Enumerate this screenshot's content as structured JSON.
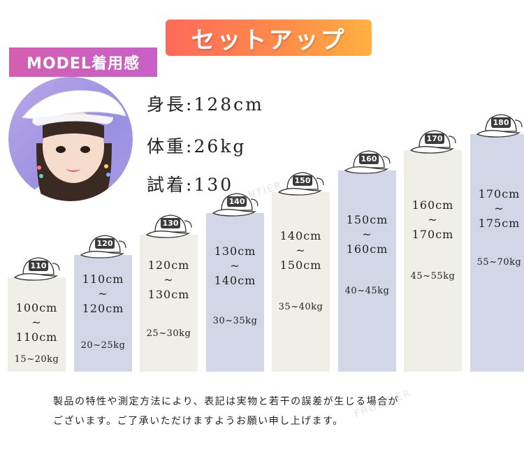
{
  "banner": {
    "title": "セットアップ"
  },
  "model_tag": {
    "label": "MODEL着用感"
  },
  "model": {
    "height_label": "身長",
    "height": "128cm",
    "weight_label": "体重",
    "weight": "26kg",
    "size_label": "試着",
    "size": "130"
  },
  "sizes": [
    {
      "size": "110",
      "range_top": "100cm",
      "tilde": "~",
      "range_bottom": "110cm",
      "weight": "15~20kg"
    },
    {
      "size": "120",
      "range_top": "110cm",
      "tilde": "~",
      "range_bottom": "120cm",
      "weight": "20~25kg"
    },
    {
      "size": "130",
      "range_top": "120cm",
      "tilde": "~",
      "range_bottom": "130cm",
      "weight": "25~30kg"
    },
    {
      "size": "140",
      "range_top": "130cm",
      "tilde": "~",
      "range_bottom": "140cm",
      "weight": "30~35kg"
    },
    {
      "size": "150",
      "range_top": "140cm",
      "tilde": "~",
      "range_bottom": "150cm",
      "weight": "35~40kg"
    },
    {
      "size": "160",
      "range_top": "150cm",
      "tilde": "~",
      "range_bottom": "160cm",
      "weight": "40~45kg"
    },
    {
      "size": "170",
      "range_top": "160cm",
      "tilde": "~",
      "range_bottom": "170cm",
      "weight": "45~55kg"
    },
    {
      "size": "180",
      "range_top": "170cm",
      "tilde": "~",
      "range_bottom": "175cm",
      "weight": "55~70kg"
    }
  ],
  "notice": {
    "line1": "製品の特性や測定方法により、表記は実物と若干の誤差が生じる場合が",
    "line2": "ございます。ご了承いただけますようお願い申し上げます。"
  },
  "watermark": "FRONTIER",
  "colors": {
    "bar_cream": "#efefe7",
    "bar_lavender": "#d3d6e6",
    "banner_start": "#ff6a5a",
    "banner_end": "#ffb040",
    "tag": "#cc60bd"
  }
}
